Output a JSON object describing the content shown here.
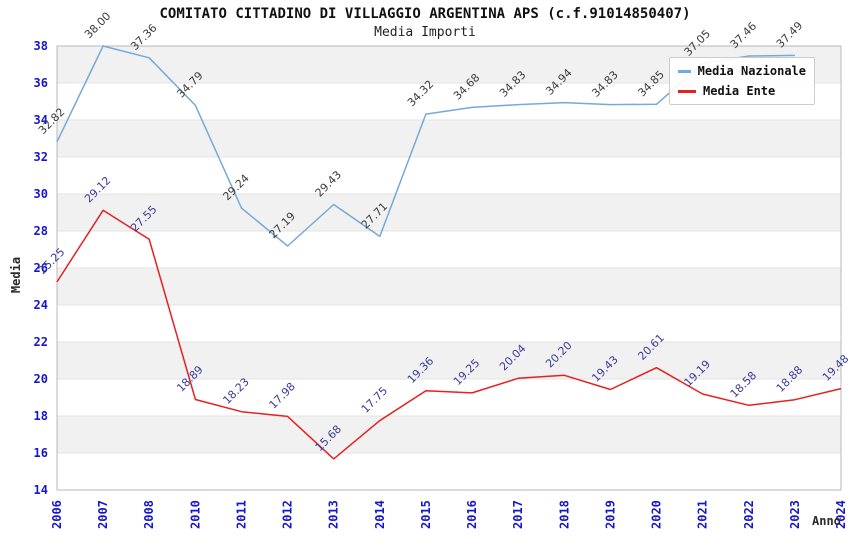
{
  "chart_data": {
    "type": "line",
    "title": "COMITATO CITTADINO DI VILLAGGIO ARGENTINA APS (c.f.91014850407)",
    "subtitle": "Media Importi",
    "xlabel": "Anno",
    "ylabel": "Media",
    "x": [
      "2006",
      "2007",
      "2008",
      "2010",
      "2011",
      "2012",
      "2013",
      "2014",
      "2015",
      "2016",
      "2017",
      "2018",
      "2019",
      "2020",
      "2021",
      "2022",
      "2023",
      "2024"
    ],
    "series": [
      {
        "name": "Media Nazionale",
        "color": "#74a9d8",
        "label_color": "#3c3c3c",
        "values": [
          32.82,
          38.0,
          37.36,
          34.79,
          29.24,
          27.19,
          29.43,
          27.71,
          34.32,
          34.68,
          34.83,
          34.94,
          34.83,
          34.85,
          37.05,
          37.46,
          37.49,
          null
        ]
      },
      {
        "name": "Media Ente",
        "color": "#e62020",
        "label_color": "#3a3a99",
        "values": [
          25.25,
          29.12,
          27.55,
          18.89,
          18.23,
          17.98,
          15.68,
          17.75,
          19.36,
          19.25,
          20.04,
          20.2,
          19.43,
          20.61,
          19.19,
          18.58,
          18.88,
          19.48
        ]
      }
    ],
    "ylim": [
      14,
      38
    ],
    "yticks": [
      14,
      16,
      18,
      20,
      22,
      24,
      26,
      28,
      30,
      32,
      34,
      36,
      38
    ],
    "grid": true,
    "banded": true,
    "legend_position": "top-right",
    "band_fill": "#f1f1f1",
    "grid_color": "#e3e3e3",
    "spine_color": "#b9b9b9",
    "tick_color": "#1616cf"
  },
  "legend": {
    "items": [
      {
        "label": "Media Nazionale"
      },
      {
        "label": "Media Ente"
      }
    ]
  }
}
